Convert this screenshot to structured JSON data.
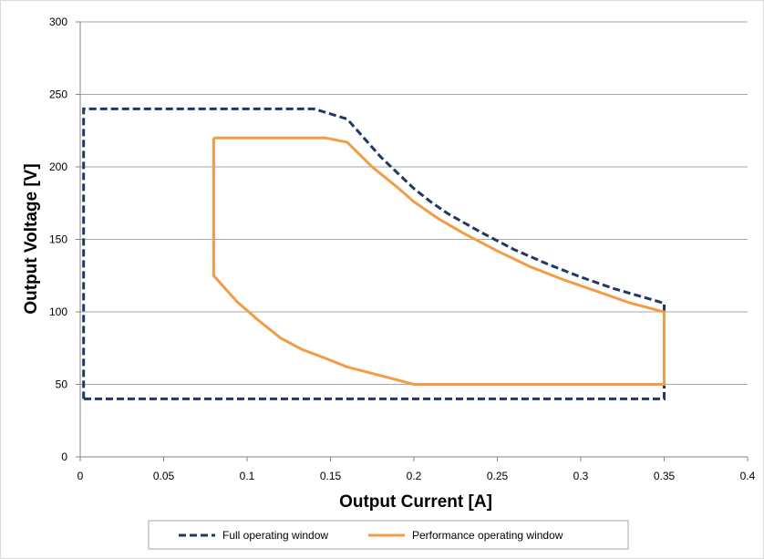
{
  "chart_data": {
    "type": "line",
    "title": "",
    "xlabel": "Output Current [A]",
    "ylabel": "Output Voltage [V]",
    "xlim": [
      0,
      0.4
    ],
    "ylim": [
      0,
      300
    ],
    "x_ticks": [
      "0",
      "0.05",
      "0.1",
      "0.15",
      "0.2",
      "0.25",
      "0.3",
      "0.35",
      "0.4"
    ],
    "y_ticks": [
      "0",
      "50",
      "100",
      "150",
      "200",
      "250",
      "300"
    ],
    "grid": "horizontal",
    "legend_position": "bottom",
    "series": [
      {
        "name": "Full operating window",
        "color": "#203864",
        "style": "dashed",
        "points": [
          [
            0.002,
            40
          ],
          [
            0.002,
            240
          ],
          [
            0.14,
            240
          ],
          [
            0.16,
            233
          ],
          [
            0.17,
            220
          ],
          [
            0.18,
            207
          ],
          [
            0.19,
            196
          ],
          [
            0.2,
            185
          ],
          [
            0.21,
            176
          ],
          [
            0.22,
            168
          ],
          [
            0.24,
            155
          ],
          [
            0.26,
            143
          ],
          [
            0.28,
            133
          ],
          [
            0.3,
            124
          ],
          [
            0.32,
            116
          ],
          [
            0.35,
            106
          ],
          [
            0.35,
            40
          ],
          [
            0.002,
            40
          ]
        ]
      },
      {
        "name": "Performance operating window",
        "color": "#f39c45",
        "style": "solid",
        "points": [
          [
            0.08,
            220
          ],
          [
            0.147,
            220
          ],
          [
            0.16,
            217
          ],
          [
            0.175,
            200
          ],
          [
            0.19,
            186
          ],
          [
            0.2,
            176
          ],
          [
            0.215,
            164
          ],
          [
            0.23,
            154
          ],
          [
            0.25,
            142
          ],
          [
            0.27,
            131
          ],
          [
            0.29,
            122
          ],
          [
            0.31,
            114
          ],
          [
            0.33,
            106
          ],
          [
            0.35,
            100
          ],
          [
            0.35,
            50
          ],
          [
            0.2,
            50
          ],
          [
            0.177,
            57
          ],
          [
            0.16,
            62
          ],
          [
            0.147,
            68
          ],
          [
            0.133,
            74
          ],
          [
            0.12,
            82
          ],
          [
            0.107,
            94
          ],
          [
            0.094,
            107
          ],
          [
            0.08,
            125
          ],
          [
            0.08,
            220
          ]
        ]
      }
    ]
  }
}
